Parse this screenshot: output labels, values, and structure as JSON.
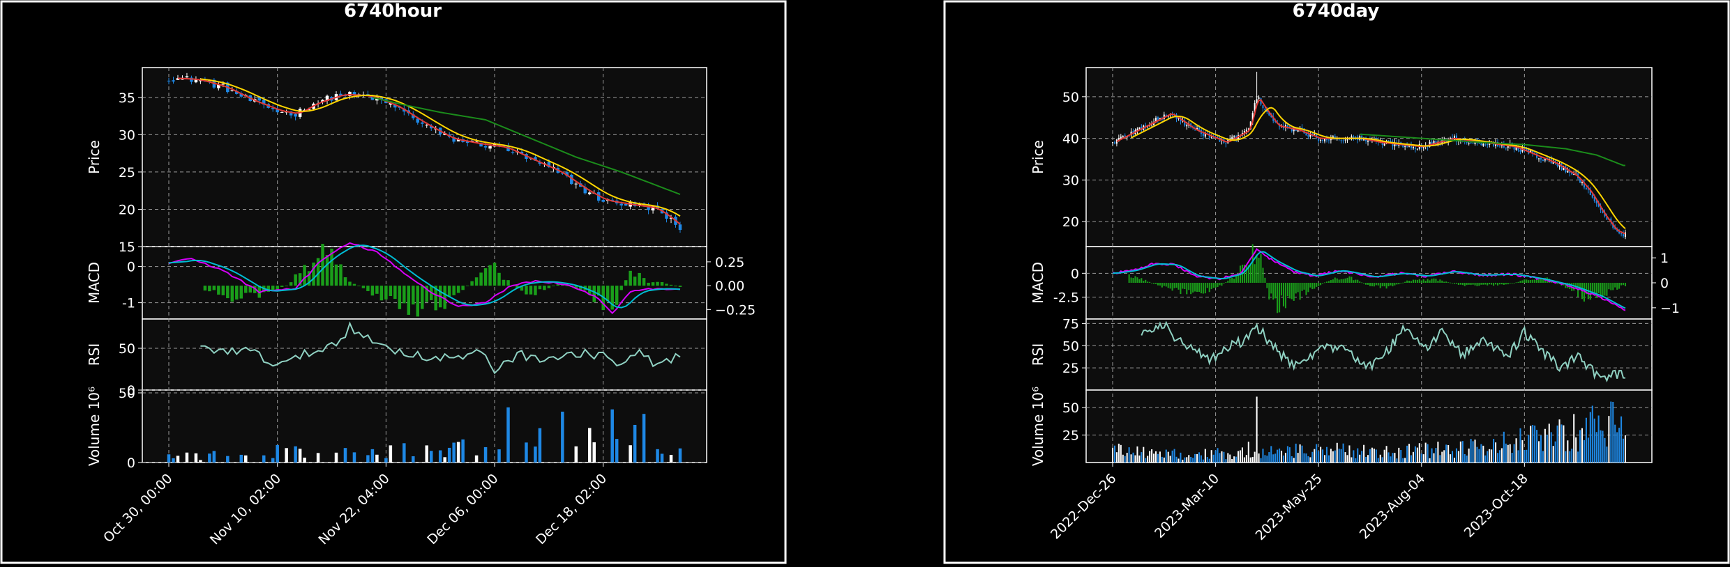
{
  "colors": {
    "background": "#000000",
    "plot_bg": "#0d0d0d",
    "frame": "#ffffff",
    "grid": "#9a9a9a",
    "text": "#ffffff",
    "candle_up": "#ffffff",
    "candle_down": "#1e88e5",
    "ma_short": "#e53935",
    "ma_mid": "#ffd600",
    "ma_long": "#1b8c1b",
    "macd_line": "#00bcd4",
    "signal_line": "#d500f9",
    "histogram": "#1a9e1a",
    "rsi_line": "#8fd1c2"
  },
  "chart_data": [
    {
      "type": "candlestick",
      "title": "6740hour",
      "x_tick_labels": [
        "Oct 30, 00:00",
        "Nov 10, 02:00",
        "Nov 22, 04:00",
        "Dec 06, 00:00",
        "Dec 18, 02:00"
      ],
      "x_tick_index": [
        0,
        24,
        48,
        72,
        96
      ],
      "n_bars": 114,
      "grid": true,
      "panels": {
        "price": {
          "ylabel": "Price",
          "ylim": [
            15,
            39
          ],
          "yticks": [
            15,
            20,
            25,
            30,
            35
          ],
          "close_anchors": [
            [
              0,
              37.6
            ],
            [
              6,
              37.4
            ],
            [
              12,
              36.4
            ],
            [
              18,
              34.6
            ],
            [
              24,
              33.2
            ],
            [
              28,
              32.8
            ],
            [
              32,
              34.2
            ],
            [
              38,
              35.4
            ],
            [
              44,
              35.2
            ],
            [
              50,
              33.8
            ],
            [
              56,
              31.5
            ],
            [
              62,
              29.5
            ],
            [
              68,
              28.8
            ],
            [
              74,
              28.3
            ],
            [
              80,
              26.6
            ],
            [
              86,
              25.0
            ],
            [
              92,
              22.5
            ],
            [
              96,
              21.2
            ],
            [
              102,
              20.6
            ],
            [
              107,
              20.2
            ],
            [
              110,
              19.0
            ],
            [
              113,
              17.5
            ]
          ],
          "ma_long_anchors": [
            [
              45,
              35.0
            ],
            [
              52,
              34.0
            ],
            [
              60,
              33.0
            ],
            [
              70,
              32.0
            ],
            [
              80,
              29.5
            ],
            [
              90,
              27.0
            ],
            [
              100,
              25.0
            ],
            [
              113,
              22.0
            ]
          ]
        },
        "macd": {
          "ylabel": "MACD",
          "ylim_left": [
            -1.45,
            0.55
          ],
          "yticks_left": [
            -1,
            0
          ],
          "ylim_right": [
            -0.35,
            0.41
          ],
          "yticks_right": [
            -0.25,
            0.0,
            0.25
          ],
          "macd_anchors": [
            [
              0,
              0.1
            ],
            [
              5,
              0.2
            ],
            [
              12,
              -0.1
            ],
            [
              20,
              -0.7
            ],
            [
              28,
              -0.6
            ],
            [
              34,
              0.2
            ],
            [
              40,
              0.65
            ],
            [
              46,
              0.4
            ],
            [
              52,
              -0.2
            ],
            [
              58,
              -0.7
            ],
            [
              64,
              -1.1
            ],
            [
              70,
              -1.0
            ],
            [
              76,
              -0.5
            ],
            [
              82,
              -0.4
            ],
            [
              88,
              -0.5
            ],
            [
              94,
              -0.8
            ],
            [
              98,
              -1.3
            ],
            [
              102,
              -0.7
            ],
            [
              108,
              -0.6
            ],
            [
              113,
              -0.65
            ]
          ],
          "hist_anchors": [
            [
              0,
              0.02
            ],
            [
              8,
              -0.05
            ],
            [
              14,
              -0.12
            ],
            [
              20,
              -0.1
            ],
            [
              26,
              0.0
            ],
            [
              32,
              0.28
            ],
            [
              36,
              0.35
            ],
            [
              40,
              0.05
            ],
            [
              44,
              -0.05
            ],
            [
              50,
              -0.2
            ],
            [
              56,
              -0.25
            ],
            [
              62,
              -0.18
            ],
            [
              66,
              0.0
            ],
            [
              70,
              0.15
            ],
            [
              72,
              0.2
            ],
            [
              76,
              0.0
            ],
            [
              80,
              -0.1
            ],
            [
              86,
              0.02
            ],
            [
              92,
              -0.05
            ],
            [
              96,
              -0.2
            ],
            [
              98,
              -0.25
            ],
            [
              102,
              0.15
            ],
            [
              106,
              0.05
            ],
            [
              110,
              0.02
            ],
            [
              113,
              -0.02
            ]
          ]
        },
        "rsi": {
          "ylabel": "RSI",
          "ylim": [
            0,
            85
          ],
          "yticks": [
            0,
            50
          ],
          "rsi_anchors": [
            [
              7,
              50
            ],
            [
              12,
              48
            ],
            [
              18,
              46
            ],
            [
              22,
              35
            ],
            [
              26,
              32
            ],
            [
              30,
              42
            ],
            [
              34,
              50
            ],
            [
              38,
              60
            ],
            [
              40,
              78
            ],
            [
              44,
              60
            ],
            [
              48,
              52
            ],
            [
              54,
              42
            ],
            [
              60,
              38
            ],
            [
              66,
              40
            ],
            [
              70,
              45
            ],
            [
              72,
              20
            ],
            [
              74,
              35
            ],
            [
              78,
              42
            ],
            [
              84,
              38
            ],
            [
              90,
              42
            ],
            [
              96,
              44
            ],
            [
              100,
              28
            ],
            [
              104,
              45
            ],
            [
              108,
              30
            ],
            [
              113,
              40
            ]
          ]
        },
        "volume": {
          "ylabel": "Volume  10⁶",
          "ylim": [
            0,
            52
          ],
          "yticks": [
            0,
            50
          ],
          "volume_anchors": [
            [
              0,
              4
            ],
            [
              10,
              6
            ],
            [
              20,
              10
            ],
            [
              30,
              8
            ],
            [
              40,
              7
            ],
            [
              50,
              9
            ],
            [
              60,
              12
            ],
            [
              70,
              14
            ],
            [
              76,
              36
            ],
            [
              80,
              40
            ],
            [
              86,
              28
            ],
            [
              90,
              20
            ],
            [
              96,
              46
            ],
            [
              100,
              30
            ],
            [
              106,
              34
            ],
            [
              110,
              14
            ],
            [
              113,
              24
            ]
          ]
        }
      }
    },
    {
      "type": "candlestick",
      "title": "6740day",
      "x_tick_labels": [
        "2022-Dec-26",
        "2023-Mar-10",
        "2023-May-25",
        "2023-Aug-04",
        "2023-Oct-18"
      ],
      "x_tick_index": [
        0,
        50,
        100,
        150,
        200
      ],
      "n_bars": 250,
      "grid": true,
      "panels": {
        "price": {
          "ylabel": "Price",
          "ylim": [
            14,
            57
          ],
          "yticks": [
            20,
            30,
            40,
            50
          ],
          "close_anchors": [
            [
              0,
              39
            ],
            [
              12,
              42
            ],
            [
              28,
              46
            ],
            [
              40,
              42
            ],
            [
              55,
              39
            ],
            [
              66,
              42
            ],
            [
              70,
              50
            ],
            [
              74,
              47
            ],
            [
              80,
              43
            ],
            [
              90,
              42
            ],
            [
              100,
              40
            ],
            [
              110,
              40
            ],
            [
              120,
              40
            ],
            [
              130,
              39
            ],
            [
              150,
              38
            ],
            [
              165,
              40
            ],
            [
              180,
              39
            ],
            [
              195,
              38
            ],
            [
              205,
              36
            ],
            [
              215,
              34
            ],
            [
              225,
              31
            ],
            [
              232,
              27
            ],
            [
              238,
              22
            ],
            [
              244,
              18
            ],
            [
              248,
              17
            ]
          ],
          "ma_long_anchors": [
            [
              120,
              41
            ],
            [
              150,
              40
            ],
            [
              180,
              39
            ],
            [
              200,
              38.5
            ],
            [
              220,
              37.5
            ],
            [
              235,
              36
            ],
            [
              248,
              33.5
            ]
          ],
          "spike_index": 70,
          "spike_high": 56
        },
        "macd": {
          "ylabel": "MACD",
          "ylim_left": [
            -4.8,
            2.8
          ],
          "yticks_left": [
            -2.5,
            0.0
          ],
          "ylim_right": [
            -1.45,
            1.45
          ],
          "yticks_right": [
            -1,
            0,
            1
          ],
          "macd_anchors": [
            [
              0,
              0.0
            ],
            [
              10,
              0.3
            ],
            [
              20,
              1.0
            ],
            [
              30,
              0.9
            ],
            [
              40,
              -0.3
            ],
            [
              52,
              -0.6
            ],
            [
              62,
              0.0
            ],
            [
              70,
              2.5
            ],
            [
              78,
              1.3
            ],
            [
              88,
              0.2
            ],
            [
              98,
              -0.3
            ],
            [
              110,
              0.3
            ],
            [
              118,
              0.0
            ],
            [
              126,
              -0.4
            ],
            [
              140,
              0.0
            ],
            [
              152,
              -0.3
            ],
            [
              165,
              0.2
            ],
            [
              178,
              -0.2
            ],
            [
              194,
              -0.1
            ],
            [
              208,
              -0.6
            ],
            [
              222,
              -1.3
            ],
            [
              236,
              -2.4
            ],
            [
              248,
              -3.8
            ]
          ],
          "hist_anchors": [
            [
              0,
              0.0
            ],
            [
              8,
              0.3
            ],
            [
              14,
              0.15
            ],
            [
              22,
              -0.1
            ],
            [
              36,
              -0.4
            ],
            [
              50,
              -0.25
            ],
            [
              60,
              0.3
            ],
            [
              68,
              1.2
            ],
            [
              72,
              0.9
            ],
            [
              76,
              -0.6
            ],
            [
              80,
              -0.9
            ],
            [
              86,
              -0.7
            ],
            [
              96,
              -0.3
            ],
            [
              106,
              0.15
            ],
            [
              116,
              0.2
            ],
            [
              124,
              -0.1
            ],
            [
              134,
              -0.2
            ],
            [
              144,
              0.1
            ],
            [
              156,
              0.15
            ],
            [
              170,
              -0.1
            ],
            [
              190,
              -0.1
            ],
            [
              200,
              0.1
            ],
            [
              210,
              0.2
            ],
            [
              220,
              -0.2
            ],
            [
              230,
              -0.6
            ],
            [
              240,
              -0.4
            ],
            [
              248,
              -0.1
            ]
          ]
        },
        "rsi": {
          "ylabel": "RSI",
          "ylim": [
            0,
            80
          ],
          "yticks": [
            25,
            50,
            75
          ],
          "rsi_anchors": [
            [
              14,
              65
            ],
            [
              20,
              70
            ],
            [
              26,
              72
            ],
            [
              32,
              55
            ],
            [
              40,
              45
            ],
            [
              48,
              35
            ],
            [
              56,
              50
            ],
            [
              64,
              55
            ],
            [
              70,
              72
            ],
            [
              74,
              60
            ],
            [
              80,
              45
            ],
            [
              88,
              25
            ],
            [
              96,
              38
            ],
            [
              104,
              48
            ],
            [
              114,
              45
            ],
            [
              124,
              25
            ],
            [
              132,
              40
            ],
            [
              142,
              70
            ],
            [
              152,
              45
            ],
            [
              160,
              65
            ],
            [
              170,
              40
            ],
            [
              180,
              55
            ],
            [
              192,
              38
            ],
            [
              200,
              65
            ],
            [
              208,
              45
            ],
            [
              218,
              25
            ],
            [
              226,
              38
            ],
            [
              236,
              15
            ],
            [
              244,
              18
            ],
            [
              248,
              18
            ]
          ]
        },
        "volume": {
          "ylabel": "Volume  10⁶",
          "ylim": [
            0,
            66
          ],
          "yticks": [
            25,
            50
          ],
          "volume_anchors": [
            [
              0,
              14
            ],
            [
              10,
              10
            ],
            [
              20,
              9
            ],
            [
              40,
              8
            ],
            [
              60,
              10
            ],
            [
              66,
              14
            ],
            [
              75,
              10
            ],
            [
              90,
              12
            ],
            [
              110,
              12
            ],
            [
              130,
              10
            ],
            [
              150,
              12
            ],
            [
              170,
              14
            ],
            [
              190,
              20
            ],
            [
              210,
              26
            ],
            [
              225,
              30
            ],
            [
              235,
              40
            ],
            [
              240,
              44
            ],
            [
              244,
              50
            ],
            [
              248,
              30
            ]
          ],
          "spike_index": 70,
          "spike_value": 60
        }
      }
    }
  ]
}
